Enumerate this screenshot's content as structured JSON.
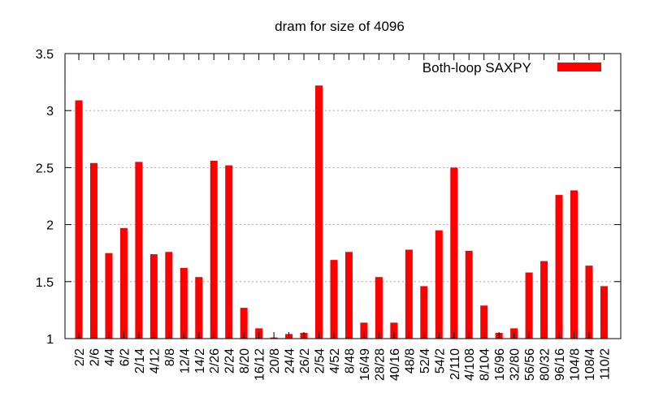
{
  "chart_data": {
    "type": "bar",
    "title": "dram for size of 4096",
    "xlabel": "",
    "ylabel": "",
    "ylim": [
      1,
      3.5
    ],
    "yticks": [
      "1",
      "1.5",
      "2",
      "2.5",
      "3",
      "3.5"
    ],
    "grid": "horizontal dotted",
    "legend_position": "top-right",
    "categories": [
      "2/2",
      "2/6",
      "4/4",
      "6/2",
      "2/14",
      "4/12",
      "8/8",
      "12/4",
      "14/2",
      "2/26",
      "2/24",
      "8/20",
      "16/12",
      "20/8",
      "24/4",
      "26/2",
      "2/54",
      "4/52",
      "8/48",
      "16/49",
      "28/28",
      "40/16",
      "48/8",
      "52/4",
      "54/2",
      "2/110",
      "4/108",
      "8/104",
      "16/96",
      "32/80",
      "56/56",
      "80/32",
      "96/16",
      "104/8",
      "108/4",
      "110/2"
    ],
    "series": [
      {
        "name": "Both-loop SAXPY",
        "color": "#ff0000",
        "values": [
          3.09,
          2.54,
          1.75,
          1.97,
          2.55,
          1.74,
          1.76,
          1.62,
          1.54,
          2.56,
          2.52,
          1.27,
          1.09,
          1.01,
          1.04,
          1.05,
          3.22,
          1.69,
          1.76,
          1.14,
          1.54,
          1.14,
          1.78,
          1.46,
          1.95,
          2.5,
          1.77,
          1.29,
          1.05,
          1.09,
          1.58,
          1.68,
          2.26,
          2.3,
          1.64,
          1.46
        ]
      }
    ]
  }
}
